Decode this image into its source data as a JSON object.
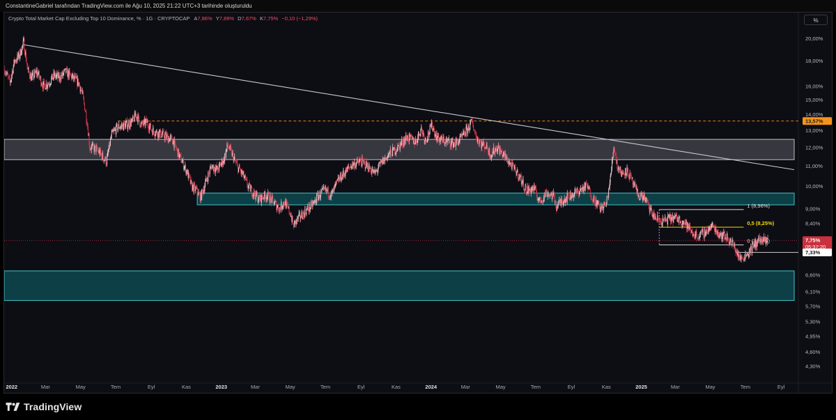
{
  "header": {
    "credit": "ConstantineGabriel tarafından TradingView.com ile Ağu 10, 2025 21:22 UTC+3 tarihinde oluşturuldu"
  },
  "legend": {
    "symbol": "Crypto Total Market Cap Excluding Top 10 Dominance, % · 1G · CRYPTOCAP",
    "open_label": "A",
    "open": "7,86%",
    "high_label": "Y",
    "high": "7,89%",
    "low_label": "D",
    "low": "7,67%",
    "close_label": "K",
    "close": "7,75%",
    "change": "−0,10 (−1,29%)"
  },
  "scale_button": "%",
  "footer": {
    "brand": "TradingView"
  },
  "colors": {
    "up": "#f2d2d6",
    "down": "#e03b4d",
    "trendline": "#c9c9d1",
    "gray_zone": "#4a4a52",
    "teal_zone": "#0e4a4f",
    "teal_border": "#3fc5c9",
    "orange_level": "#f7931a",
    "fib_mid": "#f5d90a"
  },
  "chart_data": {
    "type": "candlestick",
    "title": "Crypto Total Market Cap Excluding Top 10 Dominance, %",
    "y_scale": "log",
    "ylim": [
      4.05,
      21.0
    ],
    "x_range": [
      "2021-12-19",
      "2025-09-24"
    ],
    "y_ticks": [
      "20,00%",
      "18,00%",
      "16,00%",
      "15,00%",
      "14,00%",
      "13,00%",
      "12,00%",
      "11,00%",
      "10,00%",
      "9,00%",
      "8,40%",
      "7,80%",
      "6,60%",
      "6,10%",
      "5,70%",
      "5,30%",
      "4,95%",
      "4,60%",
      "4,30%"
    ],
    "y_tick_values": [
      20.0,
      18.0,
      16.0,
      15.0,
      14.0,
      13.0,
      12.0,
      11.0,
      10.0,
      9.0,
      8.4,
      7.8,
      6.6,
      6.1,
      5.7,
      5.3,
      4.95,
      4.6,
      4.3
    ],
    "x_ticks": [
      {
        "label": "2022",
        "date": "2022-01-01",
        "bold": true
      },
      {
        "label": "Mar",
        "date": "2022-03-01"
      },
      {
        "label": "May",
        "date": "2022-05-01"
      },
      {
        "label": "Tem",
        "date": "2022-07-01"
      },
      {
        "label": "Eyl",
        "date": "2022-09-01"
      },
      {
        "label": "Kas",
        "date": "2022-11-01"
      },
      {
        "label": "2023",
        "date": "2023-01-01",
        "bold": true
      },
      {
        "label": "Mar",
        "date": "2023-03-01"
      },
      {
        "label": "May",
        "date": "2023-05-01"
      },
      {
        "label": "Tem",
        "date": "2023-07-01"
      },
      {
        "label": "Eyl",
        "date": "2023-09-01"
      },
      {
        "label": "Kas",
        "date": "2023-11-01"
      },
      {
        "label": "2024",
        "date": "2024-01-01",
        "bold": true
      },
      {
        "label": "Mar",
        "date": "2024-03-01"
      },
      {
        "label": "May",
        "date": "2024-05-01"
      },
      {
        "label": "Tem",
        "date": "2024-07-01"
      },
      {
        "label": "Eyl",
        "date": "2024-09-01"
      },
      {
        "label": "Kas",
        "date": "2024-11-01"
      },
      {
        "label": "2025",
        "date": "2025-01-01",
        "bold": true
      },
      {
        "label": "Mar",
        "date": "2025-03-01"
      },
      {
        "label": "May",
        "date": "2025-05-01"
      },
      {
        "label": "Tem",
        "date": "2025-07-01"
      },
      {
        "label": "Eyl",
        "date": "2025-09-01"
      }
    ],
    "price_path": [
      [
        "2021-12-20",
        17.3
      ],
      [
        "2021-12-29",
        16.2
      ],
      [
        "2022-01-06",
        18.0
      ],
      [
        "2022-01-14",
        18.4
      ],
      [
        "2022-01-22",
        19.6
      ],
      [
        "2022-01-29",
        17.2
      ],
      [
        "2022-02-05",
        16.6
      ],
      [
        "2022-02-14",
        17.1
      ],
      [
        "2022-02-25",
        16.0
      ],
      [
        "2022-03-06",
        16.2
      ],
      [
        "2022-03-16",
        16.8
      ],
      [
        "2022-03-25",
        16.6
      ],
      [
        "2022-04-05",
        17.1
      ],
      [
        "2022-04-18",
        16.6
      ],
      [
        "2022-04-28",
        16.2
      ],
      [
        "2022-05-05",
        15.2
      ],
      [
        "2022-05-12",
        13.6
      ],
      [
        "2022-05-17",
        12.0
      ],
      [
        "2022-05-28",
        11.9
      ],
      [
        "2022-06-08",
        11.5
      ],
      [
        "2022-06-15",
        11.2
      ],
      [
        "2022-06-24",
        12.7
      ],
      [
        "2022-07-05",
        13.2
      ],
      [
        "2022-07-18",
        13.3
      ],
      [
        "2022-07-30",
        13.5
      ],
      [
        "2022-08-05",
        14.0
      ],
      [
        "2022-08-15",
        13.3
      ],
      [
        "2022-08-24",
        13.5
      ],
      [
        "2022-09-02",
        13.0
      ],
      [
        "2022-09-15",
        12.8
      ],
      [
        "2022-09-28",
        12.6
      ],
      [
        "2022-10-08",
        12.4
      ],
      [
        "2022-10-20",
        11.5
      ],
      [
        "2022-11-02",
        10.7
      ],
      [
        "2022-11-10",
        10.0
      ],
      [
        "2022-11-18",
        9.8
      ],
      [
        "2022-11-26",
        9.5
      ],
      [
        "2022-12-05",
        10.2
      ],
      [
        "2022-12-15",
        11.0
      ],
      [
        "2022-12-25",
        10.8
      ],
      [
        "2023-01-05",
        11.3
      ],
      [
        "2023-01-12",
        12.1
      ],
      [
        "2023-01-20",
        11.6
      ],
      [
        "2023-01-28",
        11.0
      ],
      [
        "2023-02-08",
        10.5
      ],
      [
        "2023-02-16",
        10.0
      ],
      [
        "2023-02-25",
        9.7
      ],
      [
        "2023-03-08",
        9.4
      ],
      [
        "2023-03-20",
        9.6
      ],
      [
        "2023-04-01",
        9.3
      ],
      [
        "2023-04-12",
        9.0
      ],
      [
        "2023-04-20",
        9.3
      ],
      [
        "2023-05-01",
        8.8
      ],
      [
        "2023-05-06",
        8.3
      ],
      [
        "2023-05-15",
        8.6
      ],
      [
        "2023-05-28",
        8.9
      ],
      [
        "2023-06-10",
        9.2
      ],
      [
        "2023-06-20",
        9.6
      ],
      [
        "2023-07-01",
        9.8
      ],
      [
        "2023-07-12",
        9.6
      ],
      [
        "2023-07-24",
        10.3
      ],
      [
        "2023-08-05",
        10.7
      ],
      [
        "2023-08-18",
        11.1
      ],
      [
        "2023-09-01",
        11.2
      ],
      [
        "2023-09-12",
        11.0
      ],
      [
        "2023-09-25",
        10.6
      ],
      [
        "2023-10-08",
        11.2
      ],
      [
        "2023-10-20",
        11.6
      ],
      [
        "2023-11-05",
        12.0
      ],
      [
        "2023-11-20",
        12.6
      ],
      [
        "2023-12-05",
        12.3
      ],
      [
        "2023-12-15",
        13.1
      ],
      [
        "2023-12-22",
        12.4
      ],
      [
        "2024-01-03",
        13.3
      ],
      [
        "2024-01-10",
        12.6
      ],
      [
        "2024-01-20",
        12.4
      ],
      [
        "2024-02-01",
        12.3
      ],
      [
        "2024-02-12",
        12.2
      ],
      [
        "2024-02-25",
        12.6
      ],
      [
        "2024-03-05",
        13.1
      ],
      [
        "2024-03-12",
        13.5
      ],
      [
        "2024-03-20",
        12.6
      ],
      [
        "2024-03-28",
        12.2
      ],
      [
        "2024-04-05",
        12.1
      ],
      [
        "2024-04-14",
        11.6
      ],
      [
        "2024-04-25",
        12.0
      ],
      [
        "2024-05-08",
        11.5
      ],
      [
        "2024-05-20",
        11.0
      ],
      [
        "2024-06-02",
        10.5
      ],
      [
        "2024-06-15",
        9.8
      ],
      [
        "2024-06-28",
        9.9
      ],
      [
        "2024-07-08",
        9.3
      ],
      [
        "2024-07-20",
        9.7
      ],
      [
        "2024-08-02",
        9.5
      ],
      [
        "2024-08-06",
        9.1
      ],
      [
        "2024-08-18",
        9.4
      ],
      [
        "2024-09-02",
        9.6
      ],
      [
        "2024-09-15",
        9.8
      ],
      [
        "2024-09-28",
        10.0
      ],
      [
        "2024-10-10",
        9.4
      ],
      [
        "2024-10-22",
        9.0
      ],
      [
        "2024-11-01",
        9.2
      ],
      [
        "2024-11-08",
        10.3
      ],
      [
        "2024-11-14",
        12.1
      ],
      [
        "2024-11-20",
        11.0
      ],
      [
        "2024-11-28",
        10.6
      ],
      [
        "2024-12-06",
        10.8
      ],
      [
        "2024-12-16",
        10.2
      ],
      [
        "2024-12-26",
        9.6
      ],
      [
        "2025-01-06",
        9.5
      ],
      [
        "2025-01-15",
        9.0
      ],
      [
        "2025-01-22",
        8.7
      ],
      [
        "2025-02-01",
        8.5
      ],
      [
        "2025-02-10",
        8.5
      ],
      [
        "2025-02-22",
        8.6
      ],
      [
        "2025-03-05",
        8.6
      ],
      [
        "2025-03-18",
        8.4
      ],
      [
        "2025-04-01",
        8.0
      ],
      [
        "2025-04-12",
        7.9
      ],
      [
        "2025-04-24",
        8.1
      ],
      [
        "2025-05-05",
        8.3
      ],
      [
        "2025-05-16",
        8.0
      ],
      [
        "2025-05-28",
        7.9
      ],
      [
        "2025-06-10",
        7.6
      ],
      [
        "2025-06-22",
        7.1
      ],
      [
        "2025-07-05",
        7.3
      ],
      [
        "2025-07-15",
        7.55
      ],
      [
        "2025-07-25",
        7.8
      ],
      [
        "2025-08-04",
        7.7
      ],
      [
        "2025-08-10",
        7.75
      ]
    ],
    "trendline": {
      "from": [
        "2022-01-22",
        19.4
      ],
      "to": [
        "2025-09-24",
        10.8
      ]
    },
    "zones": [
      {
        "name": "gray-resistance",
        "from": "2021-12-19",
        "to": "2025-09-24",
        "top": 12.45,
        "bottom": 11.32,
        "color": "gray"
      },
      {
        "name": "teal-support",
        "from": "2022-11-20",
        "to": "2025-09-24",
        "top": 9.68,
        "bottom": 9.16,
        "color": "teal"
      },
      {
        "name": "teal-support-low",
        "from": "2021-12-19",
        "to": "2025-09-24",
        "top": 6.72,
        "bottom": 5.85,
        "color": "teal"
      }
    ],
    "horizontal_levels": [
      {
        "name": "orange-level",
        "value": 13.57,
        "from": "2022-07-05",
        "style": "dashed",
        "color": "orange"
      },
      {
        "name": "current-price-line",
        "value": 7.75,
        "from": "2021-12-19",
        "style": "dotted",
        "color": "red"
      },
      {
        "name": "support-7-33",
        "value": 7.33,
        "from": "2025-06-15",
        "style": "solid",
        "color": "white"
      }
    ],
    "fibonacci": {
      "from": "2025-02-01",
      "to": "2025-06-28",
      "levels": [
        {
          "label": "1 (8,96%)",
          "value": 8.96,
          "color": "white"
        },
        {
          "label": "0,5 (8,25%)",
          "value": 8.25,
          "color": "yellow"
        },
        {
          "label": "0 (7,59%)",
          "value": 7.59,
          "color": "white"
        }
      ]
    },
    "axis_badges": [
      {
        "name": "orange-level-badge",
        "text": "13,57%",
        "value": 13.57,
        "bg": "#f7931a",
        "fg": "#1a1a1a"
      },
      {
        "name": "price-badge",
        "text": "7,75%",
        "subtext": "05:37:20",
        "value": 7.75,
        "bg": "#c9303f",
        "fg": "#ffffff"
      },
      {
        "name": "support-badge",
        "text": "7,33%",
        "value": 7.33,
        "bg": "#ffffff",
        "fg": "#111111"
      }
    ]
  }
}
